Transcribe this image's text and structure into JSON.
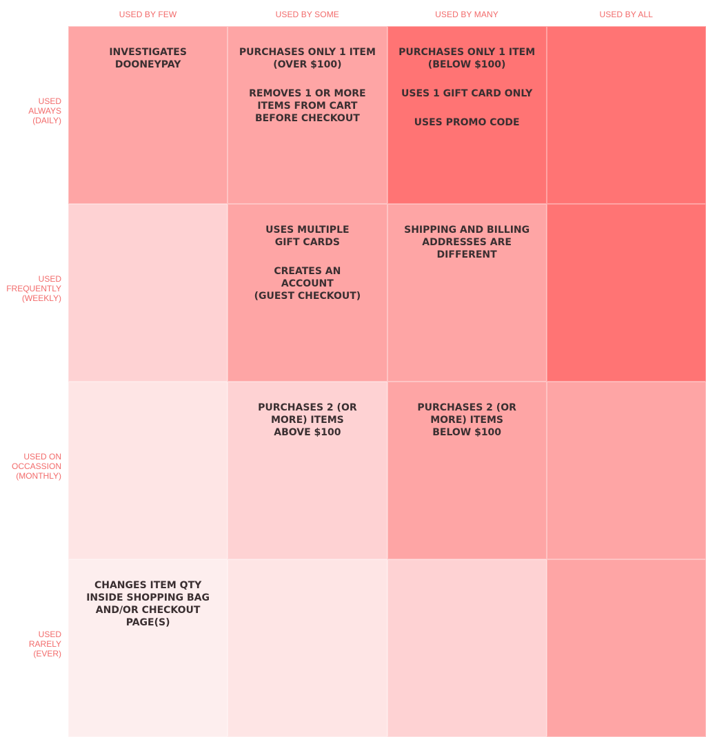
{
  "columns": [
    "USED BY FEW",
    "USED BY SOME",
    "USED BY MANY",
    "USED BY ALL"
  ],
  "rows": [
    "USED\nALWAYS\n(DAILY)",
    "USED \nFREQUENTLY\n(WEEKLY)",
    "USED  ON\nOCCASSION\n(MONTHLY)",
    "USED\nRARELY\n(EVER)"
  ],
  "colors": {
    "intensity_1": "#fdeeee",
    "intensity_2": "#fee5e5",
    "intensity_3": "#fed2d3",
    "intensity_4": "#fea5a5",
    "intensity_5": "#ff7474",
    "label": "#f26a6a",
    "text": "#3a2f31"
  },
  "cells": [
    [
      {
        "intensity": 4,
        "items": [
          "INVESTIGATES\nDOONEYPAY"
        ]
      },
      {
        "intensity": 4,
        "items": [
          "PURCHASES ONLY 1 ITEM\n(OVER $100)",
          "REMOVES 1 OR MORE\nITEMS FROM CART\nBEFORE CHECKOUT"
        ]
      },
      {
        "intensity": 5,
        "items": [
          "PURCHASES ONLY 1 ITEM\n(BELOW $100)",
          "USES 1 GIFT CARD ONLY",
          "USES PROMO CODE"
        ]
      },
      {
        "intensity": 5,
        "items": []
      }
    ],
    [
      {
        "intensity": 3,
        "items": []
      },
      {
        "intensity": 4,
        "items": [
          "USES MULTIPLE\nGIFT CARDS",
          "CREATES AN\nACCOUNT\n(GUEST CHECKOUT)"
        ]
      },
      {
        "intensity": 4,
        "items": [
          "SHIPPING AND BILLING\nADDRESSES ARE DIFFERENT"
        ]
      },
      {
        "intensity": 5,
        "items": []
      }
    ],
    [
      {
        "intensity": 2,
        "items": []
      },
      {
        "intensity": 3,
        "items": [
          "PURCHASES 2 (OR\nMORE) ITEMS\nABOVE $100"
        ]
      },
      {
        "intensity": 4,
        "items": [
          "PURCHASES 2 (OR\nMORE) ITEMS\nBELOW $100"
        ]
      },
      {
        "intensity": 4,
        "items": []
      }
    ],
    [
      {
        "intensity": 1,
        "items": [
          "CHANGES ITEM QTY\nINSIDE SHOPPING BAG\nAND/OR CHECKOUT\nPAGE(S)"
        ]
      },
      {
        "intensity": 2,
        "items": []
      },
      {
        "intensity": 3,
        "items": []
      },
      {
        "intensity": 4,
        "items": []
      }
    ]
  ]
}
